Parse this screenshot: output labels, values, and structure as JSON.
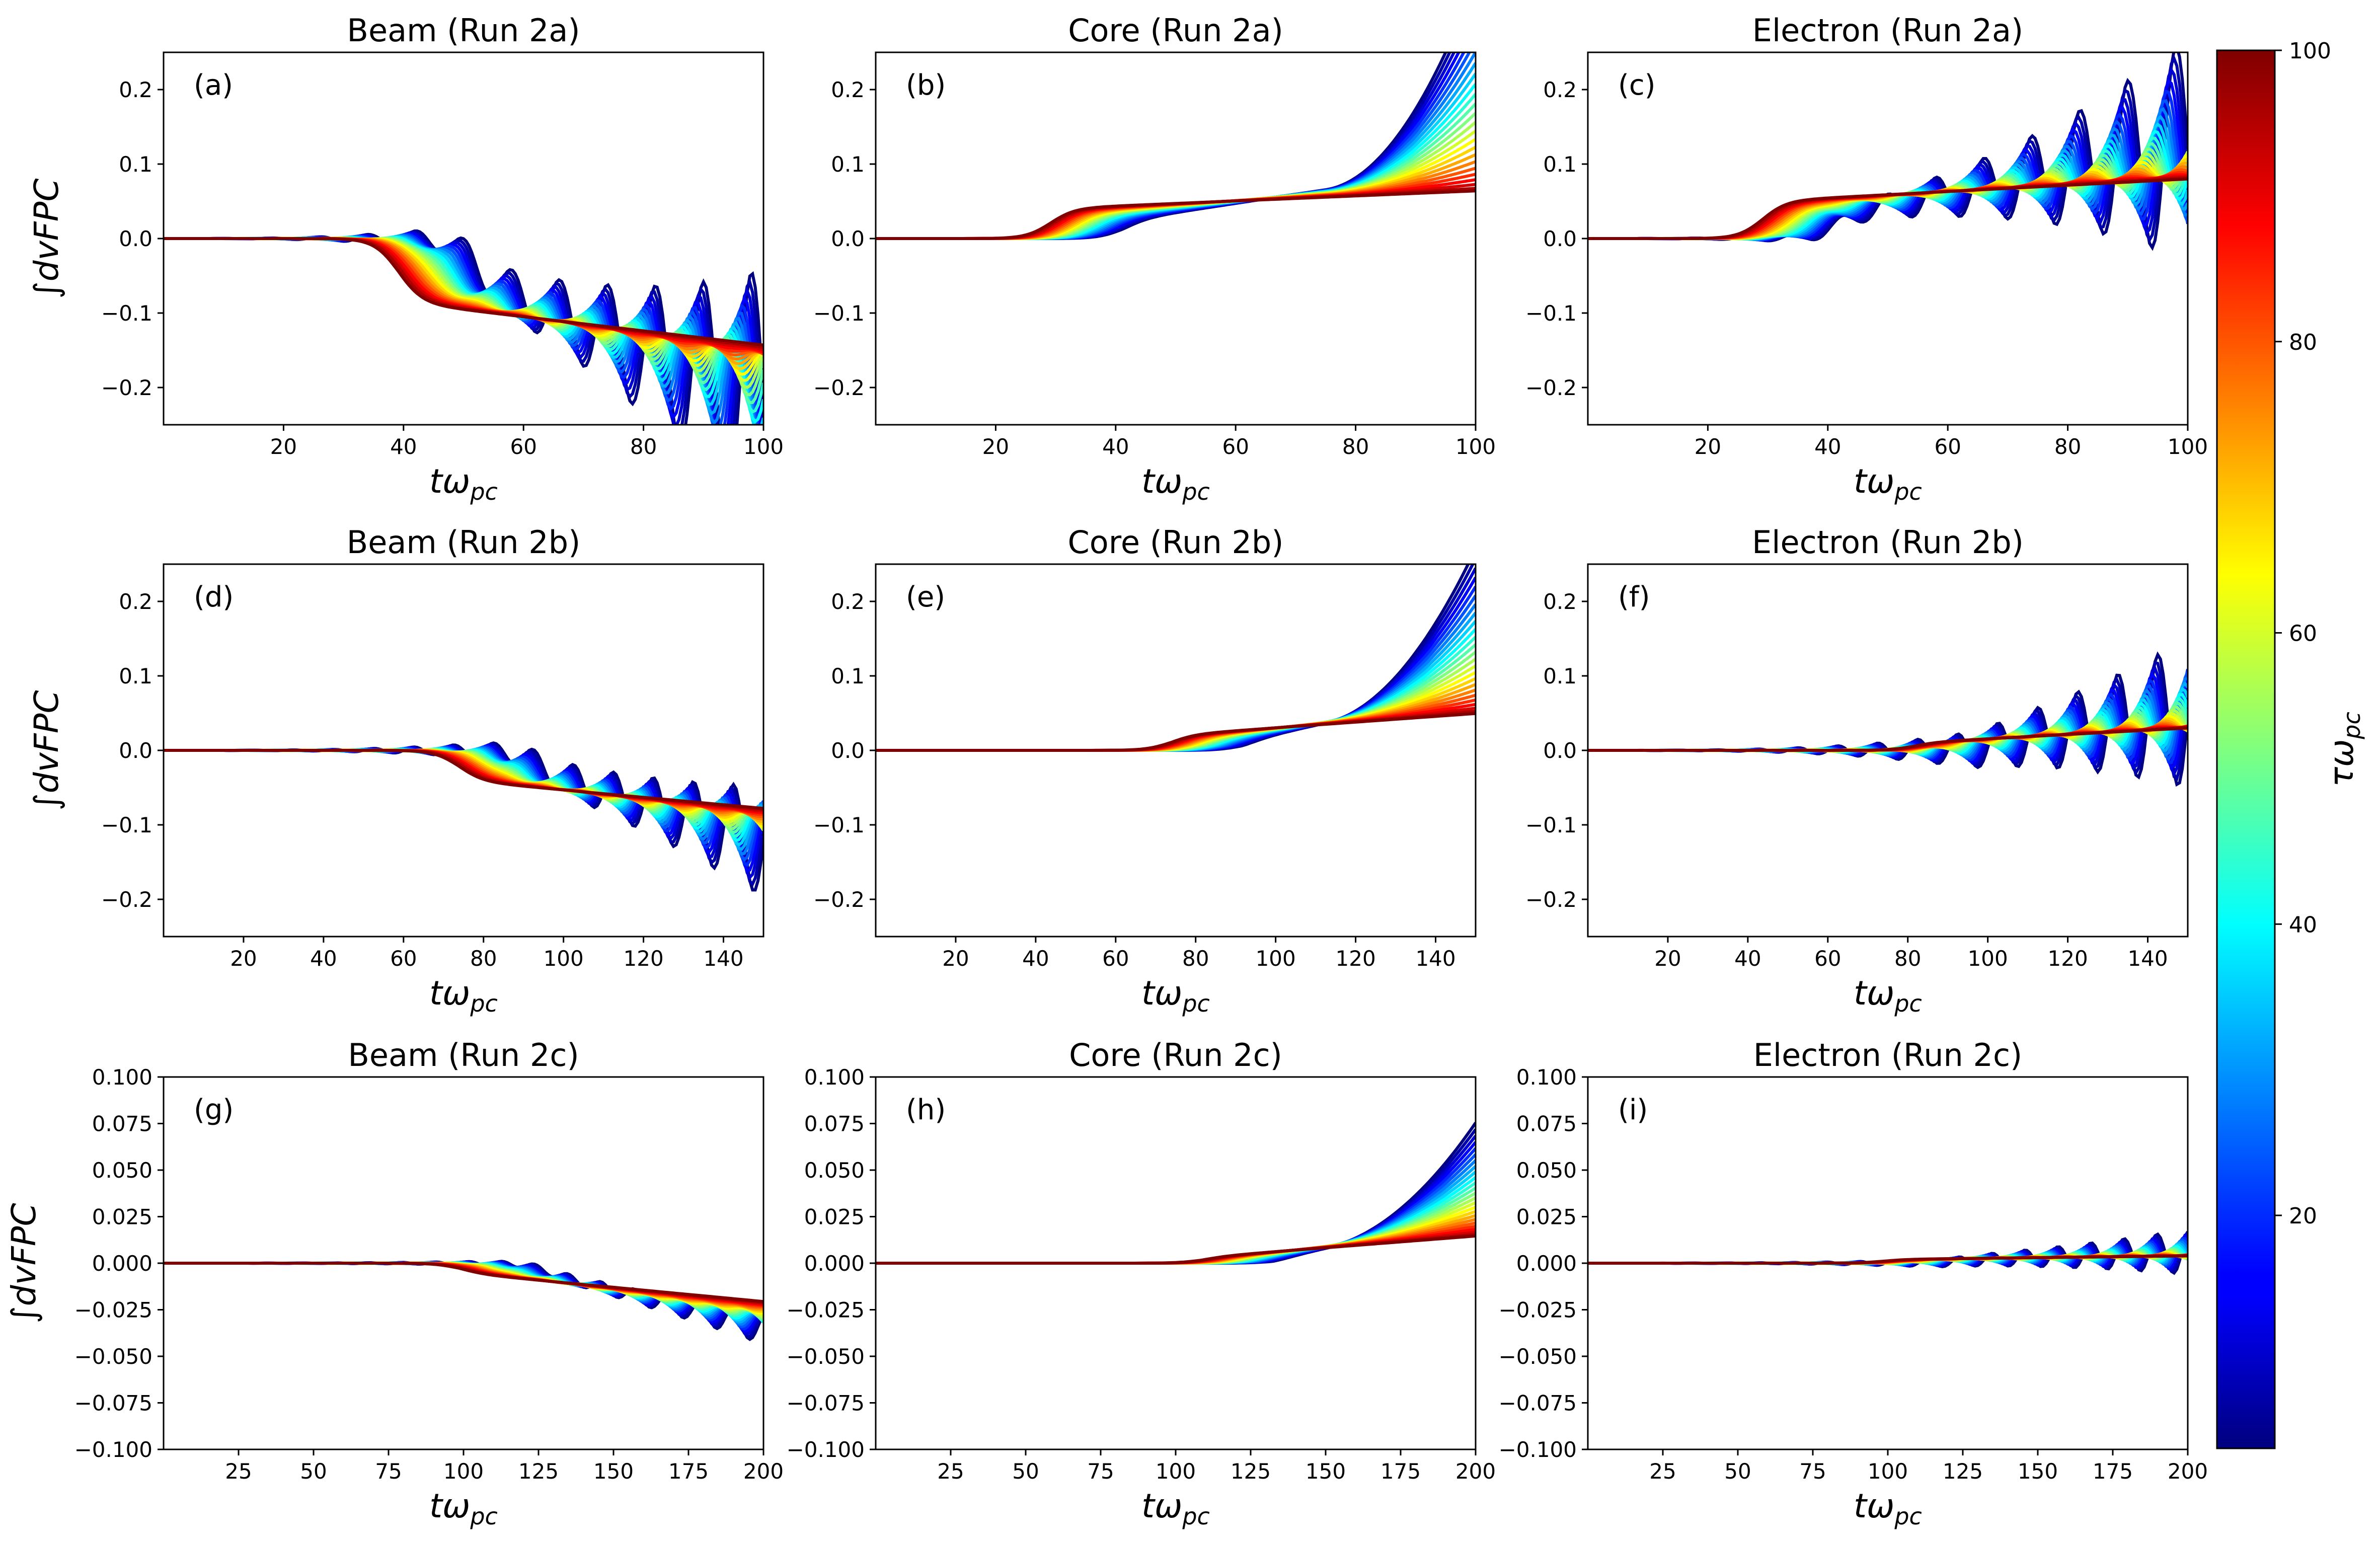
{
  "chart_data": {
    "type": "line",
    "colorbar": {
      "label": "τω",
      "label_sub": "pc",
      "colormap": "jet",
      "range": [
        4,
        100
      ],
      "ticks": [
        "20",
        "40",
        "60",
        "80",
        "100"
      ]
    },
    "tau_values": [
      4,
      8,
      12,
      16,
      20,
      24,
      28,
      32,
      36,
      40,
      44,
      48,
      52,
      56,
      60,
      64,
      68,
      72,
      76,
      80,
      84,
      88,
      92,
      96,
      100
    ],
    "panels": [
      {
        "id": "a",
        "title": "Beam (Run 2a)",
        "panel_label": "(a)",
        "xlabel": "tω",
        "xlabel_sub": "pc",
        "ylabel": "∫dvFPC",
        "xlim": [
          0,
          100
        ],
        "ylim": [
          -0.25,
          0.25
        ],
        "xticks": [
          "20",
          "40",
          "60",
          "80",
          "100"
        ],
        "yticks": [
          "0.2",
          "0.1",
          "0.0",
          "−0.1",
          "−0.2"
        ],
        "description_free": true,
        "profile": {
          "onset": 0.45,
          "sign": -1,
          "step": 0.085,
          "slope_end": -0.18,
          "osc": 0.35,
          "osc_period": 8
        }
      },
      {
        "id": "b",
        "title": "Core (Run 2a)",
        "panel_label": "(b)",
        "xlabel": "tω",
        "xlabel_sub": "pc",
        "ylabel": "",
        "xlim": [
          0,
          100
        ],
        "ylim": [
          -0.25,
          0.25
        ],
        "xticks": [
          "20",
          "40",
          "60",
          "80",
          "100"
        ],
        "yticks": [
          "0.2",
          "0.1",
          "0.0",
          "−0.1",
          "−0.2"
        ],
        "profile": {
          "onset": 0.35,
          "sign": 1,
          "step": 0.04,
          "slope_end": 0.08,
          "osc": 0.0,
          "osc_period": 8,
          "blow": 0.25
        }
      },
      {
        "id": "c",
        "title": "Electron (Run 2a)",
        "panel_label": "(c)",
        "xlabel": "tω",
        "xlabel_sub": "pc",
        "ylabel": "",
        "xlim": [
          0,
          100
        ],
        "ylim": [
          -0.25,
          0.25
        ],
        "xticks": [
          "20",
          "40",
          "60",
          "80",
          "100"
        ],
        "yticks": [
          "0.2",
          "0.1",
          "0.0",
          "−0.1",
          "−0.2"
        ],
        "profile": {
          "onset": 0.35,
          "sign": 1,
          "step": 0.05,
          "slope_end": 0.1,
          "osc": 0.3,
          "osc_period": 8
        }
      },
      {
        "id": "d",
        "title": "Beam (Run 2b)",
        "panel_label": "(d)",
        "xlabel": "tω",
        "xlabel_sub": "pc",
        "ylabel": "∫dvFPC",
        "xlim": [
          0,
          150
        ],
        "ylim": [
          -0.25,
          0.25
        ],
        "xticks": [
          "20",
          "40",
          "60",
          "80",
          "100",
          "120",
          "140"
        ],
        "yticks": [
          "0.2",
          "0.1",
          "0.0",
          "−0.1",
          "−0.2"
        ],
        "profile": {
          "onset": 0.55,
          "sign": -1,
          "step": 0.04,
          "slope_end": -0.1,
          "osc": 0.15,
          "osc_period": 10
        }
      },
      {
        "id": "e",
        "title": "Core (Run 2b)",
        "panel_label": "(e)",
        "xlabel": "tω",
        "xlabel_sub": "pc",
        "ylabel": "",
        "xlim": [
          0,
          150
        ],
        "ylim": [
          -0.25,
          0.25
        ],
        "xticks": [
          "20",
          "40",
          "60",
          "80",
          "100",
          "120",
          "140"
        ],
        "yticks": [
          "0.2",
          "0.1",
          "0.0",
          "−0.1",
          "−0.2"
        ],
        "profile": {
          "onset": 0.55,
          "sign": 1,
          "step": 0.02,
          "slope_end": 0.065,
          "osc": 0.0,
          "osc_period": 10,
          "blow": 0.19
        }
      },
      {
        "id": "f",
        "title": "Electron (Run 2b)",
        "panel_label": "(f)",
        "xlabel": "tω",
        "xlabel_sub": "pc",
        "ylabel": "",
        "xlim": [
          0,
          150
        ],
        "ylim": [
          -0.25,
          0.25
        ],
        "xticks": [
          "20",
          "40",
          "60",
          "80",
          "100",
          "120",
          "140"
        ],
        "yticks": [
          "0.2",
          "0.1",
          "0.0",
          "−0.1",
          "−0.2"
        ],
        "profile": {
          "onset": 0.6,
          "sign": 1,
          "step": 0.01,
          "slope_end": 0.04,
          "osc": 0.2,
          "osc_period": 10
        }
      },
      {
        "id": "g",
        "title": "Beam (Run 2c)",
        "panel_label": "(g)",
        "xlabel": "tω",
        "xlabel_sub": "pc",
        "ylabel": "∫dvFPC",
        "xlim": [
          0,
          200
        ],
        "ylim": [
          -0.1,
          0.1
        ],
        "xticks": [
          "25",
          "50",
          "75",
          "100",
          "125",
          "150",
          "175",
          "200"
        ],
        "yticks": [
          "0.100",
          "0.075",
          "0.050",
          "0.025",
          "0.000",
          "−0.025",
          "−0.050",
          "−0.075",
          "−0.100"
        ],
        "profile": {
          "onset": 0.55,
          "sign": -1,
          "step": 0.005,
          "slope_end": -0.028,
          "osc": 0.04,
          "osc_period": 11
        }
      },
      {
        "id": "h",
        "title": "Core (Run 2c)",
        "panel_label": "(h)",
        "xlabel": "tω",
        "xlabel_sub": "pc",
        "ylabel": "",
        "xlim": [
          0,
          200
        ],
        "ylim": [
          -0.1,
          0.1
        ],
        "xticks": [
          "25",
          "50",
          "75",
          "100",
          "125",
          "150",
          "175",
          "200"
        ],
        "yticks": [
          "0.100",
          "0.075",
          "0.050",
          "0.025",
          "0.000",
          "−0.025",
          "−0.050",
          "−0.075",
          "−0.100"
        ],
        "profile": {
          "onset": 0.6,
          "sign": 1,
          "step": 0.003,
          "slope_end": 0.02,
          "osc": 0.0,
          "osc_period": 11,
          "blow": 0.05
        }
      },
      {
        "id": "i",
        "title": "Electron (Run 2c)",
        "panel_label": "(i)",
        "xlabel": "tω",
        "xlabel_sub": "pc",
        "ylabel": "",
        "xlim": [
          0,
          200
        ],
        "ylim": [
          -0.1,
          0.1
        ],
        "xticks": [
          "25",
          "50",
          "75",
          "100",
          "125",
          "150",
          "175",
          "200"
        ],
        "yticks": [
          "0.100",
          "0.075",
          "0.050",
          "0.025",
          "0.000",
          "−0.025",
          "−0.050",
          "−0.075",
          "−0.100"
        ],
        "profile": {
          "onset": 0.55,
          "sign": 1,
          "step": 0.002,
          "slope_end": 0.005,
          "osc": 0.06,
          "osc_period": 11
        }
      }
    ]
  }
}
